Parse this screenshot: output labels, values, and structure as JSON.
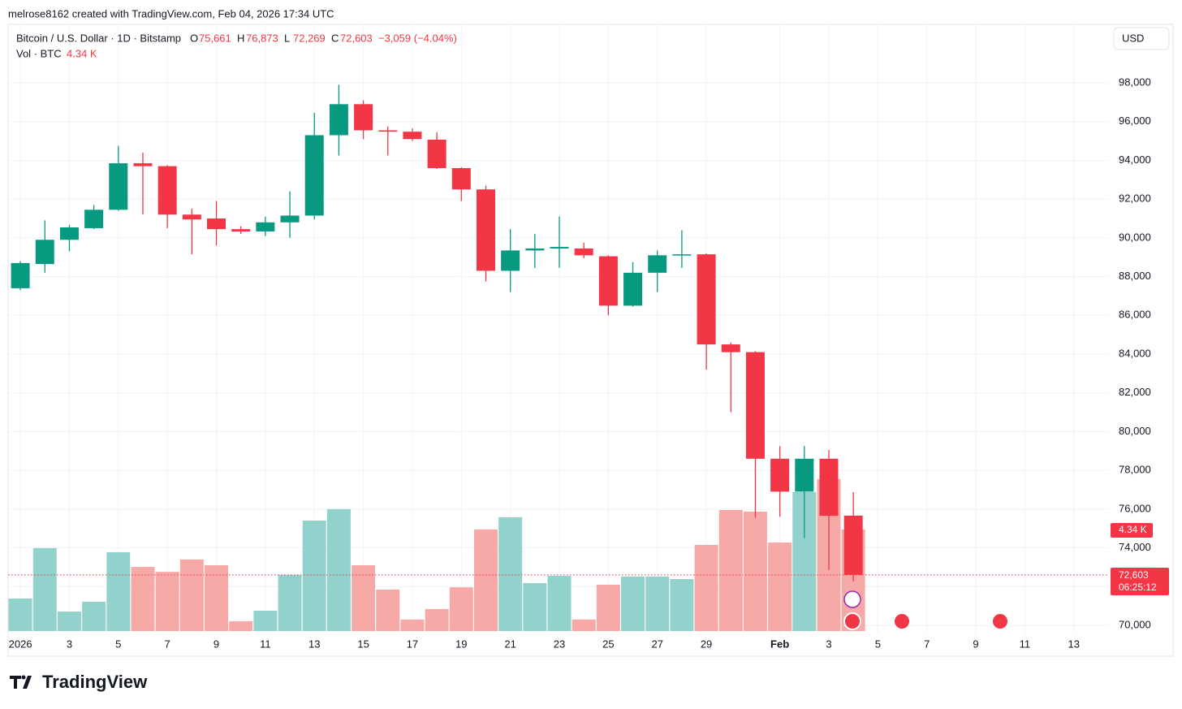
{
  "chart_data": {
    "type": "candlestick",
    "credit": "melrose8162 created with TradingView.com, Feb 04, 2026 17:34 UTC",
    "title": "Bitcoin / U.S. Dollar · 1D · Bitstamp",
    "ohlc_labels": [
      {
        "label": "O",
        "value": "75,661"
      },
      {
        "label": "H",
        "value": "76,873"
      },
      {
        "label": "L",
        "value": "72,269"
      },
      {
        "label": "C",
        "value": "72,603"
      }
    ],
    "change": "−3,059 (−4.04%)",
    "volume_name": "Vol · BTC",
    "volume_label": "4.34 K",
    "currency": "USD",
    "last_price_label": "72,603",
    "countdown": "06:25:12",
    "brand": "TradingView",
    "up_color": "#089981",
    "down_color": "#f23645",
    "volume_up_color": "#92d2cc",
    "volume_down_color": "#f7a9a7",
    "x": [
      1,
      2,
      3,
      4,
      5,
      6,
      7,
      8,
      9,
      10,
      11,
      12,
      13,
      14,
      15,
      16,
      17,
      18,
      19,
      20,
      21,
      22,
      23,
      24,
      25,
      26,
      27,
      28,
      29,
      30,
      31,
      32,
      33,
      34,
      35
    ],
    "open": [
      87400,
      88650,
      89900,
      90500,
      91450,
      93850,
      93700,
      91200,
      91000,
      90450,
      90330,
      90800,
      91150,
      95300,
      96900,
      95550,
      95480,
      95070,
      93600,
      92500,
      88300,
      89350,
      89450,
      89450,
      89050,
      86500,
      88200,
      89100,
      89150,
      84500,
      84100,
      78600,
      76900,
      78600,
      75661
    ],
    "high": [
      88800,
      90900,
      90670,
      91700,
      94750,
      94400,
      93750,
      91500,
      91900,
      90600,
      91100,
      92400,
      96450,
      97900,
      97100,
      95750,
      95650,
      95450,
      93650,
      92700,
      90450,
      90200,
      91100,
      89750,
      89100,
      88750,
      89350,
      90400,
      89200,
      84600,
      84150,
      79250,
      79250,
      79050,
      76873
    ],
    "low": [
      87300,
      88200,
      89300,
      90450,
      91400,
      91200,
      90500,
      89150,
      89600,
      90200,
      90100,
      90000,
      90950,
      94250,
      95100,
      94250,
      95000,
      93550,
      91900,
      87750,
      87200,
      88450,
      88450,
      88950,
      86000,
      86450,
      87200,
      88450,
      83200,
      81000,
      75550,
      75600,
      74500,
      72850,
      72269
    ],
    "close": [
      88700,
      89900,
      90540,
      91450,
      93850,
      93700,
      91200,
      90950,
      90450,
      90330,
      90800,
      91150,
      95300,
      96900,
      95550,
      95480,
      95100,
      93600,
      92500,
      88300,
      89350,
      89450,
      89530,
      89100,
      86500,
      88200,
      89100,
      89150,
      84500,
      84100,
      78600,
      76900,
      78600,
      75650,
      72603
    ],
    "volume": [
      1390,
      3540,
      830,
      1250,
      3370,
      2740,
      2530,
      3060,
      2810,
      420,
      870,
      2400,
      4720,
      5210,
      2810,
      1770,
      490,
      940,
      1870,
      4340,
      4860,
      2050,
      2360,
      490,
      1980,
      2330,
      2330,
      2220,
      3680,
      5170,
      5100,
      3780,
      5940,
      6490,
      4340
    ],
    "xlim": [
      0.5,
      45.4
    ],
    "xticks": [
      {
        "value": 1,
        "label": "2026"
      },
      3,
      5,
      7,
      9,
      11,
      13,
      15,
      17,
      19,
      21,
      23,
      25,
      27,
      29,
      {
        "value": 32,
        "label": "Feb"
      },
      {
        "value": 34,
        "label": "3"
      },
      {
        "value": 36,
        "label": "5"
      },
      {
        "value": 38,
        "label": "7"
      },
      {
        "value": 40,
        "label": "9"
      },
      {
        "value": 42,
        "label": "11"
      },
      {
        "value": 44,
        "label": "13"
      }
    ],
    "ylim": [
      69580,
      101020
    ],
    "yticks": [
      {
        "value": 70000,
        "label": "70,000"
      },
      {
        "value": 72000,
        "label": "72,000"
      },
      {
        "value": 74000,
        "label": "74,000"
      },
      {
        "value": 76000,
        "label": "76,000"
      },
      {
        "value": 78000,
        "label": "78,000"
      },
      {
        "value": 80000,
        "label": "80,000"
      },
      {
        "value": 82000,
        "label": "82,000"
      },
      {
        "value": 84000,
        "label": "84,000"
      },
      {
        "value": 86000,
        "label": "86,000"
      },
      {
        "value": 88000,
        "label": "88,000"
      },
      {
        "value": 90000,
        "label": "90,000"
      },
      {
        "value": 92000,
        "label": "92,000"
      },
      {
        "value": 94000,
        "label": "94,000"
      },
      {
        "value": 96000,
        "label": "96,000"
      },
      {
        "value": 98000,
        "label": "98,000"
      }
    ],
    "grid": true
  }
}
